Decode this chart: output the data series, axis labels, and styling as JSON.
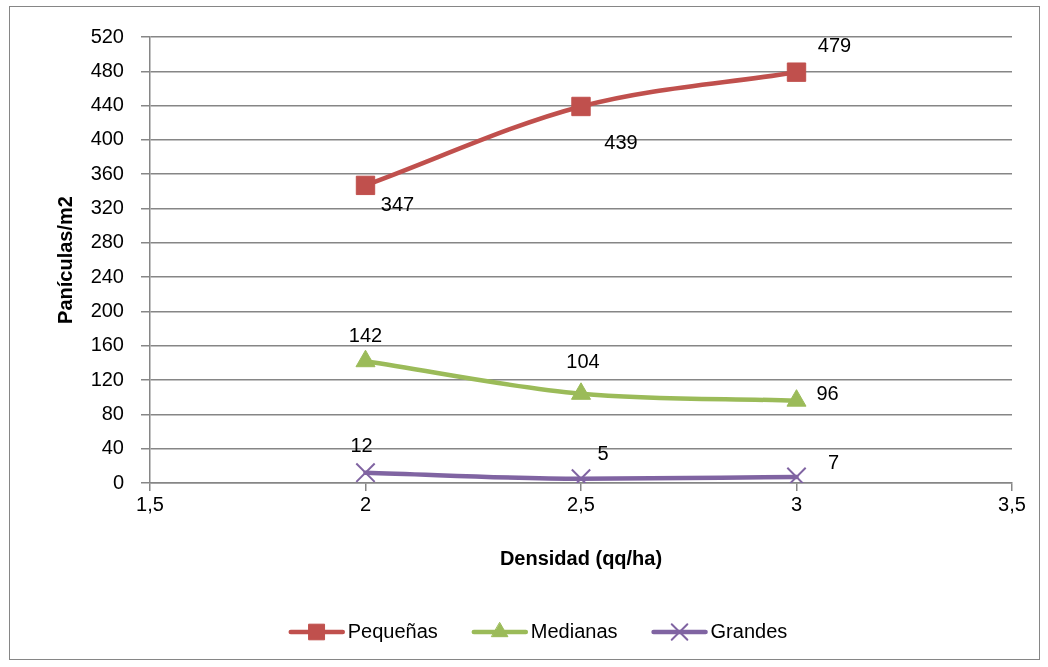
{
  "chart_data": {
    "type": "line",
    "xlabel": "Densidad (qq/ha)",
    "ylabel": "Panículas/m2",
    "x": [
      2,
      2.5,
      3
    ],
    "xlim": [
      1.5,
      3.5
    ],
    "xticks": [
      {
        "value": 1.5,
        "label": "1,5"
      },
      2,
      {
        "value": 2.5,
        "label": "2,5"
      },
      3,
      {
        "value": 3.5,
        "label": "3,5"
      }
    ],
    "ylim": [
      0,
      520
    ],
    "yticks": [
      0,
      40,
      80,
      120,
      160,
      200,
      240,
      280,
      320,
      360,
      400,
      440,
      480,
      520
    ],
    "grid": "y",
    "legend": "bottom",
    "data_labels": true,
    "series": [
      {
        "name": "Pequeñas",
        "color": "#c0504d",
        "marker": "square",
        "values": [
          347,
          439,
          479
        ]
      },
      {
        "name": "Medianas",
        "color": "#9bbb59",
        "marker": "triangle",
        "values": [
          142,
          104,
          96
        ]
      },
      {
        "name": "Grandes",
        "color": "#8064a2",
        "marker": "cross",
        "values": [
          12,
          5,
          7
        ]
      }
    ]
  }
}
